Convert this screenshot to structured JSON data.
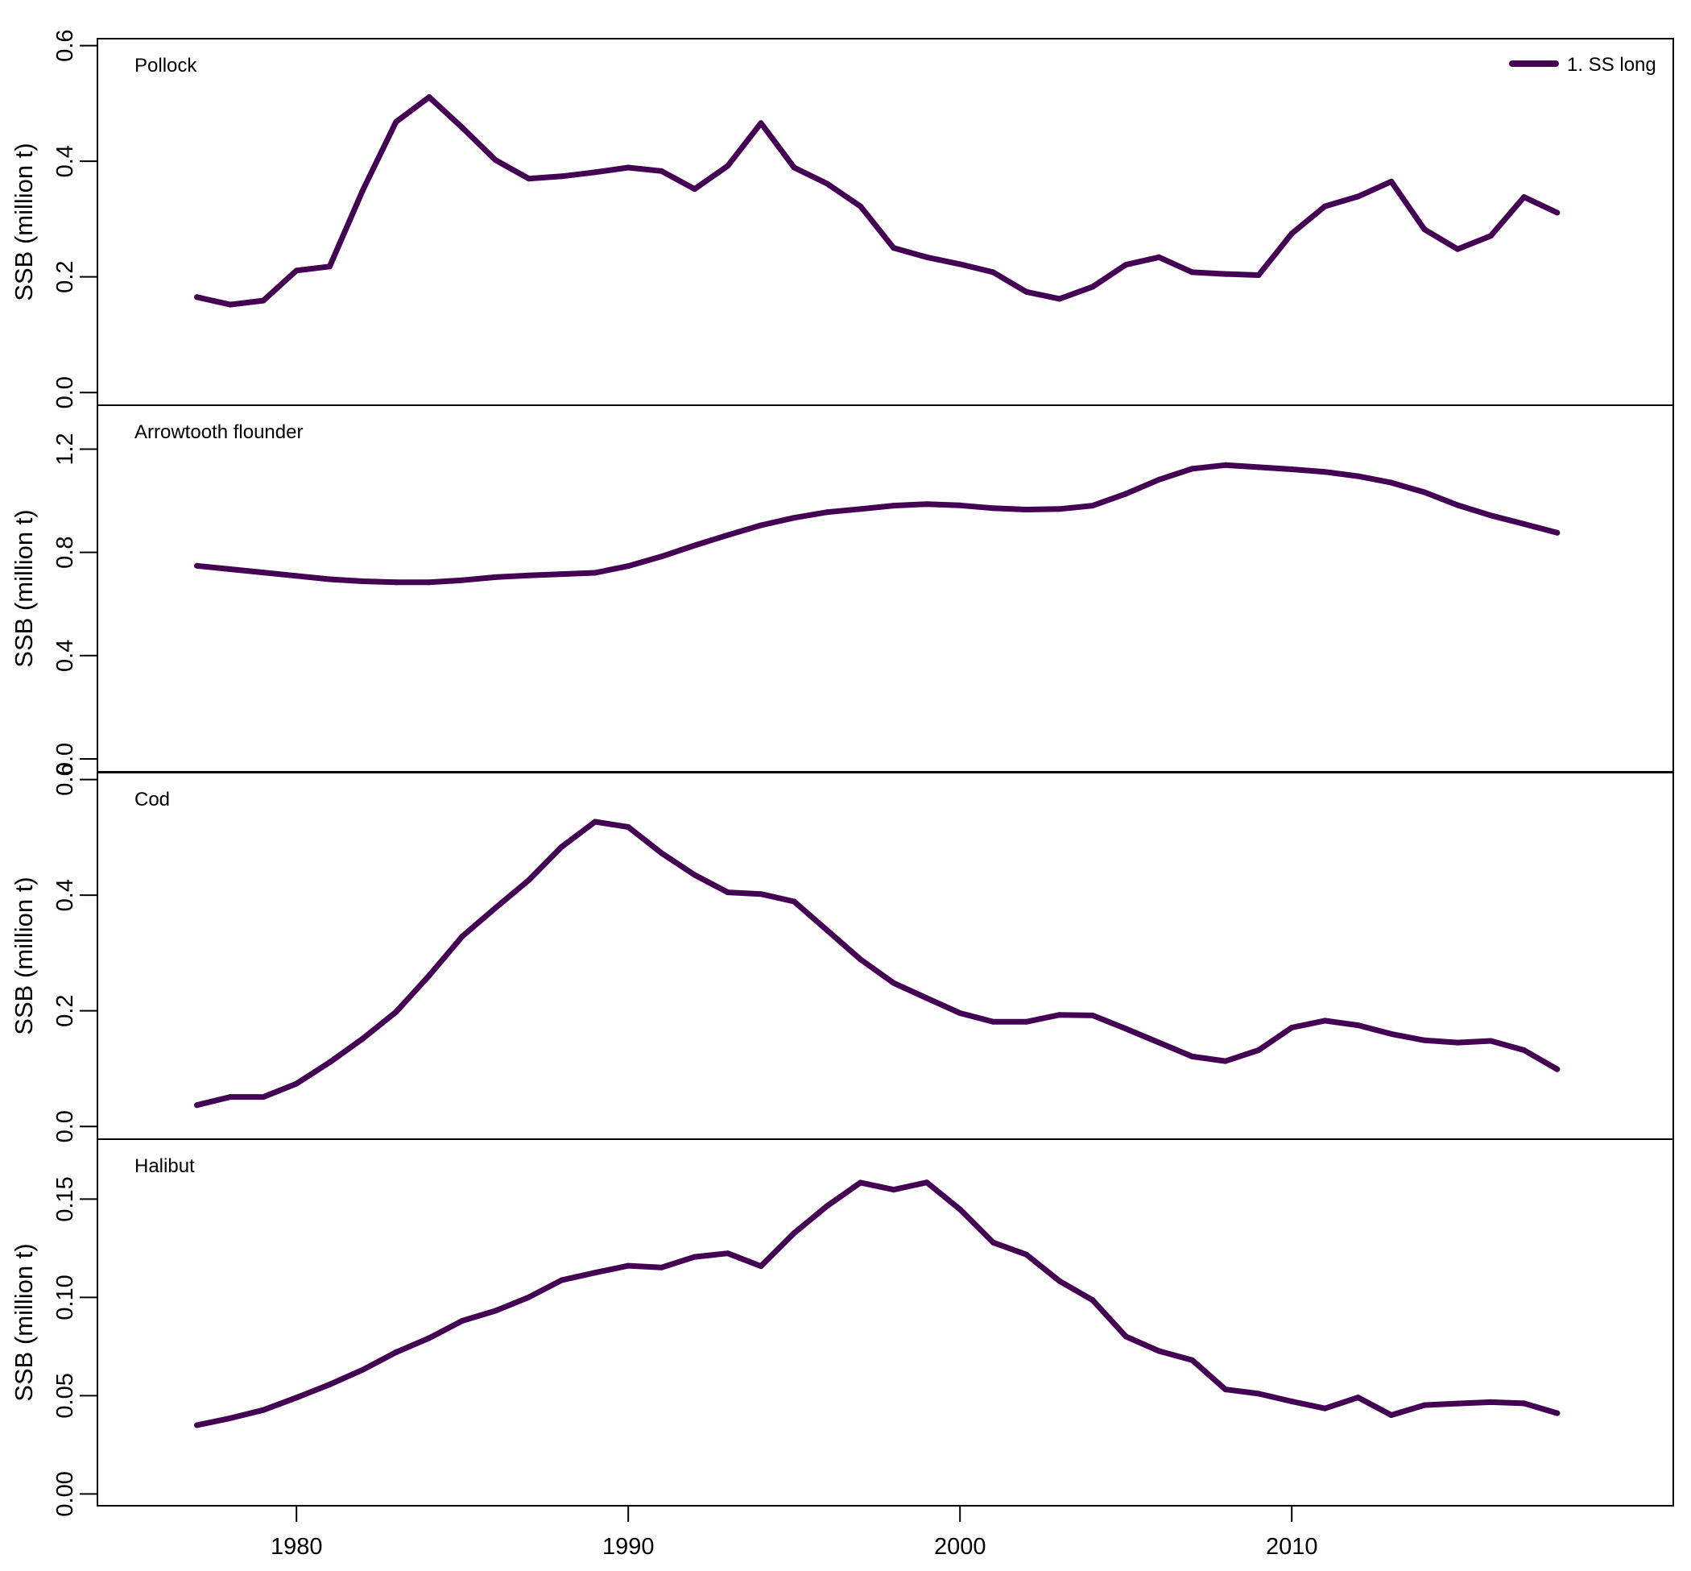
{
  "chart_data": {
    "type": "line",
    "legend": {
      "placement": "top-right",
      "entries": [
        {
          "label": "1. SS long",
          "color": "#440154"
        }
      ]
    },
    "series_color": "#440154",
    "xlim": [
      1974,
      2021.5
    ],
    "x_ticks": [
      1980,
      1990,
      2000,
      2010
    ],
    "x_tick_labels": [
      "1980",
      "1990",
      "2000",
      "2010"
    ],
    "x": [
      1977,
      1978,
      1979,
      1980,
      1981,
      1982,
      1983,
      1984,
      1985,
      1986,
      1987,
      1988,
      1989,
      1990,
      1991,
      1992,
      1993,
      1994,
      1995,
      1996,
      1997,
      1998,
      1999,
      2000,
      2001,
      2002,
      2003,
      2004,
      2005,
      2006,
      2007,
      2008,
      2009,
      2010,
      2011,
      2012,
      2013,
      2014,
      2015,
      2016,
      2017,
      2018
    ],
    "panels": [
      {
        "label": "Pollock",
        "ylabel": "SSB (million t)",
        "ylim": [
          -0.022,
          0.612
        ],
        "y_ticks": [
          0.0,
          0.2,
          0.4,
          0.6
        ],
        "y_tick_labels": [
          "0.0",
          "0.2",
          "0.4",
          "0.6"
        ],
        "values": [
          0.165,
          0.152,
          0.159,
          0.211,
          0.218,
          0.35,
          0.468,
          0.511,
          0.458,
          0.402,
          0.37,
          0.374,
          0.381,
          0.389,
          0.383,
          0.352,
          0.392,
          0.466,
          0.389,
          0.361,
          0.322,
          0.25,
          0.234,
          0.222,
          0.208,
          0.174,
          0.162,
          0.183,
          0.221,
          0.234,
          0.208,
          0.205,
          0.203,
          0.275,
          0.322,
          0.339,
          0.365,
          0.282,
          0.248,
          0.271,
          0.338,
          0.311
        ]
      },
      {
        "label": "Arrowtooth flounder",
        "ylabel": "SSB (million t)",
        "ylim": [
          -0.05,
          1.37
        ],
        "y_ticks": [
          0.0,
          0.4,
          0.8,
          1.2
        ],
        "y_tick_labels": [
          "0.0",
          "0.4",
          "0.8",
          "1.2"
        ],
        "values": [
          0.748,
          0.735,
          0.722,
          0.709,
          0.696,
          0.688,
          0.684,
          0.684,
          0.692,
          0.704,
          0.711,
          0.716,
          0.721,
          0.747,
          0.784,
          0.827,
          0.867,
          0.905,
          0.934,
          0.956,
          0.968,
          0.981,
          0.987,
          0.982,
          0.971,
          0.966,
          0.968,
          0.981,
          1.027,
          1.082,
          1.124,
          1.138,
          1.13,
          1.122,
          1.112,
          1.095,
          1.07,
          1.033,
          0.983,
          0.943,
          0.91,
          0.876
        ]
      },
      {
        "label": "Cod",
        "ylabel": "SSB (million t)",
        "ylim": [
          -0.022,
          0.612
        ],
        "y_ticks": [
          0.0,
          0.2,
          0.4,
          0.6
        ],
        "y_tick_labels": [
          "0.0",
          "0.2",
          "0.4",
          "0.6"
        ],
        "values": [
          0.037,
          0.051,
          0.051,
          0.074,
          0.111,
          0.152,
          0.198,
          0.261,
          0.329,
          0.378,
          0.426,
          0.484,
          0.527,
          0.518,
          0.473,
          0.435,
          0.405,
          0.402,
          0.389,
          0.339,
          0.289,
          0.248,
          0.222,
          0.196,
          0.181,
          0.181,
          0.193,
          0.192,
          0.169,
          0.145,
          0.121,
          0.113,
          0.132,
          0.171,
          0.183,
          0.175,
          0.16,
          0.149,
          0.145,
          0.148,
          0.132,
          0.099
        ]
      },
      {
        "label": "Halibut",
        "ylabel": "SSB (million t)",
        "ylim": [
          -0.006,
          0.1805
        ],
        "y_ticks": [
          0.0,
          0.05,
          0.1,
          0.15
        ],
        "y_tick_labels": [
          "0.00",
          "0.05",
          "0.10",
          "0.15"
        ],
        "values": [
          0.035,
          0.0385,
          0.0427,
          0.049,
          0.0557,
          0.0632,
          0.0721,
          0.0793,
          0.0881,
          0.0932,
          0.1001,
          0.1088,
          0.1126,
          0.1161,
          0.1152,
          0.1206,
          0.1224,
          0.1159,
          0.1327,
          0.1466,
          0.1584,
          0.1548,
          0.1585,
          0.1448,
          0.1279,
          0.1218,
          0.1083,
          0.0986,
          0.0801,
          0.0727,
          0.0681,
          0.0532,
          0.051,
          0.0471,
          0.0435,
          0.0491,
          0.0401,
          0.0452,
          0.046,
          0.0467,
          0.0461,
          0.0411
        ]
      }
    ]
  }
}
